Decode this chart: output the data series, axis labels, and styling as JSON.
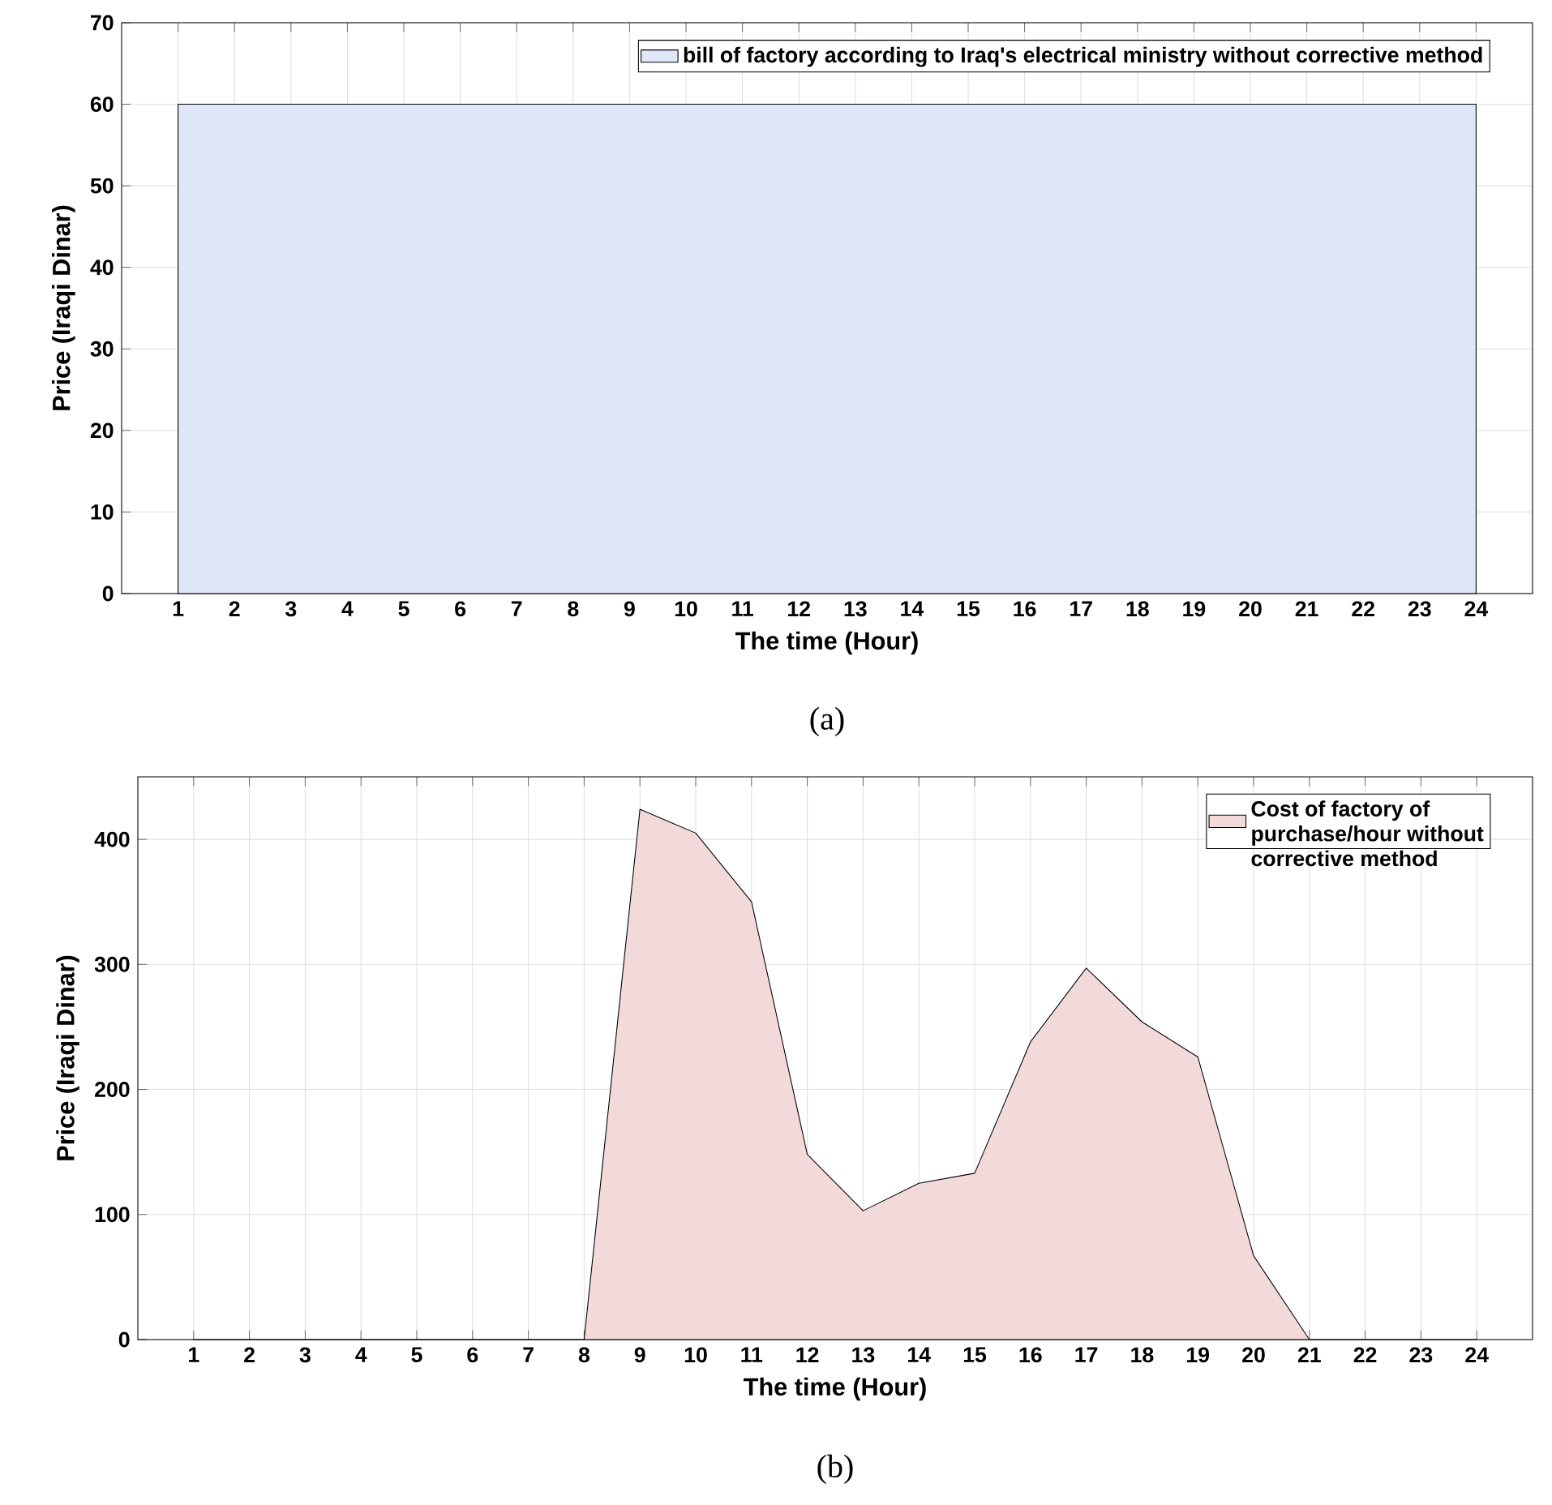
{
  "chart_data": [
    {
      "type": "area",
      "xlabel": "The time (Hour)",
      "ylabel": "Price (Iraqi Dinar)",
      "annotations": [
        "(a)"
      ],
      "x": [
        1,
        2,
        3,
        4,
        5,
        6,
        7,
        8,
        9,
        10,
        11,
        12,
        13,
        14,
        15,
        16,
        17,
        18,
        19,
        20,
        21,
        22,
        23,
        24
      ],
      "series": [
        {
          "name": "bill of factory according to Iraq's electrical ministry without corrective method",
          "color": "#dfe6f8",
          "values": [
            60,
            60,
            60,
            60,
            60,
            60,
            60,
            60,
            60,
            60,
            60,
            60,
            60,
            60,
            60,
            60,
            60,
            60,
            60,
            60,
            60,
            60,
            60,
            60
          ]
        }
      ],
      "xlim": [
        0,
        25
      ],
      "ylim": [
        0,
        70
      ],
      "xticks": [
        1,
        2,
        3,
        4,
        5,
        6,
        7,
        8,
        9,
        10,
        11,
        12,
        13,
        14,
        15,
        16,
        17,
        18,
        19,
        20,
        21,
        22,
        23,
        24
      ],
      "yticks": [
        0,
        10,
        20,
        30,
        40,
        50,
        60,
        70
      ],
      "grid": true,
      "legend": "top right"
    },
    {
      "type": "area",
      "xlabel": "The time (Hour)",
      "ylabel": "Price (Iraqi Dinar)",
      "annotations": [
        "(b)"
      ],
      "x": [
        1,
        2,
        3,
        4,
        5,
        6,
        7,
        8,
        9,
        10,
        11,
        12,
        13,
        14,
        15,
        16,
        17,
        18,
        19,
        20,
        21,
        22,
        23,
        24
      ],
      "series": [
        {
          "name": "Cost of factory of purchase/hour without corrective method",
          "color": "#f2dada",
          "values": [
            0,
            0,
            0,
            0,
            0,
            0,
            0,
            0,
            424,
            405,
            350,
            148,
            103,
            125,
            133,
            238,
            297,
            254,
            226,
            67,
            0,
            0,
            0,
            0
          ]
        }
      ],
      "xlim": [
        0,
        25
      ],
      "ylim": [
        0,
        450
      ],
      "xticks": [
        1,
        2,
        3,
        4,
        5,
        6,
        7,
        8,
        9,
        10,
        11,
        12,
        13,
        14,
        15,
        16,
        17,
        18,
        19,
        20,
        21,
        22,
        23,
        24
      ],
      "yticks": [
        0,
        100,
        200,
        300,
        400
      ],
      "grid": true,
      "legend": "top right"
    }
  ]
}
